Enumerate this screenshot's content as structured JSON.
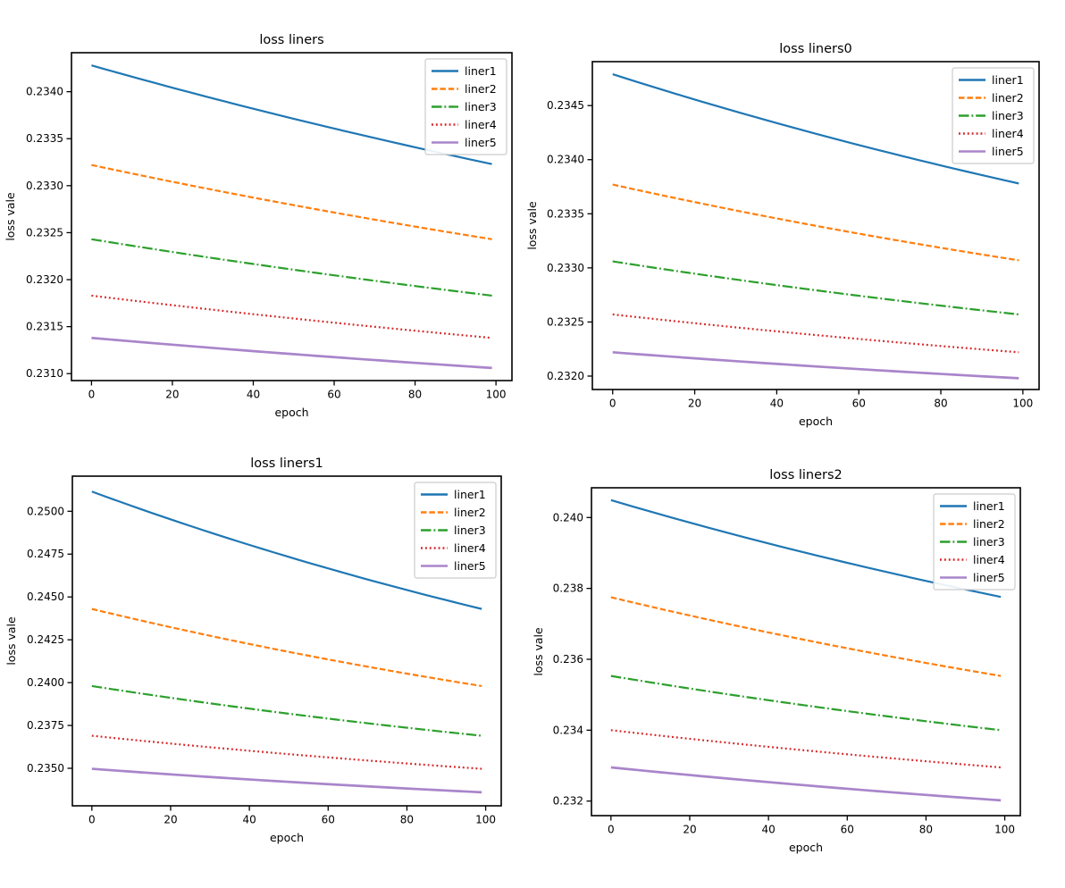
{
  "figure": {
    "background": "#ffffff",
    "layout": "2x2 subplots"
  },
  "chart_data": [
    {
      "type": "line",
      "title": "loss liners",
      "xlabel": "epoch",
      "ylabel": "loss vale",
      "grid": false,
      "legend_position": "upper right",
      "x_range": [
        0,
        99
      ],
      "xlim": [
        -4.95,
        103.95
      ],
      "ylim": [
        0.230926,
        0.234415
      ],
      "xticks": [
        0,
        20,
        40,
        60,
        80,
        100
      ],
      "xtick_labels": [
        "0",
        "20",
        "40",
        "60",
        "80",
        "100"
      ],
      "yticks": [
        0.231,
        0.2315,
        0.232,
        0.2325,
        0.233,
        0.2335,
        0.234
      ],
      "ytick_labels": [
        "0.2310",
        "0.2315",
        "0.2320",
        "0.2325",
        "0.2330",
        "0.2335",
        "0.2340"
      ],
      "curve_decay": 0.75,
      "series": [
        {
          "label": "liner1",
          "color": "#1f77b4",
          "linestyle": "solid",
          "alpha": 1.0,
          "start": 0.23428,
          "end": 0.23323
        },
        {
          "label": "liner2",
          "color": "#ff7f0e",
          "linestyle": "dashed",
          "alpha": 1.0,
          "start": 0.23322,
          "end": 0.23243
        },
        {
          "label": "liner3",
          "color": "#2ca02c",
          "linestyle": "dashdot",
          "alpha": 1.0,
          "start": 0.23243,
          "end": 0.23183
        },
        {
          "label": "liner4",
          "color": "#d62728",
          "linestyle": "dotted",
          "alpha": 1.0,
          "start": 0.23183,
          "end": 0.23138
        },
        {
          "label": "liner5",
          "color": "#9467bd",
          "linestyle": "solid",
          "alpha": 0.8,
          "start": 0.23138,
          "end": 0.23106
        }
      ]
    },
    {
      "type": "line",
      "title": "loss liners0",
      "xlabel": "epoch",
      "ylabel": "loss vale",
      "grid": false,
      "legend_position": "upper right",
      "x_range": [
        0,
        99
      ],
      "xlim": [
        -4.95,
        103.95
      ],
      "ylim": [
        0.231876,
        0.234906
      ],
      "xticks": [
        0,
        20,
        40,
        60,
        80,
        100
      ],
      "xtick_labels": [
        "0",
        "20",
        "40",
        "60",
        "80",
        "100"
      ],
      "yticks": [
        0.232,
        0.2325,
        0.233,
        0.2335,
        0.234,
        0.2345
      ],
      "ytick_labels": [
        "0.2320",
        "0.2325",
        "0.2330",
        "0.2335",
        "0.2340",
        "0.2345"
      ],
      "curve_decay": 0.7,
      "series": [
        {
          "label": "liner1",
          "color": "#1f77b4",
          "linestyle": "solid",
          "alpha": 1.0,
          "start": 0.23479,
          "end": 0.23378
        },
        {
          "label": "liner2",
          "color": "#ff7f0e",
          "linestyle": "dashed",
          "alpha": 1.0,
          "start": 0.23377,
          "end": 0.23307
        },
        {
          "label": "liner3",
          "color": "#2ca02c",
          "linestyle": "dashdot",
          "alpha": 1.0,
          "start": 0.23306,
          "end": 0.23257
        },
        {
          "label": "liner4",
          "color": "#d62728",
          "linestyle": "dotted",
          "alpha": 1.0,
          "start": 0.23257,
          "end": 0.23222
        },
        {
          "label": "liner5",
          "color": "#9467bd",
          "linestyle": "solid",
          "alpha": 0.8,
          "start": 0.23222,
          "end": 0.23198
        }
      ]
    },
    {
      "type": "line",
      "title": "loss liners1",
      "xlabel": "epoch",
      "ylabel": "loss vale",
      "grid": false,
      "legend_position": "upper right",
      "x_range": [
        0,
        99
      ],
      "xlim": [
        -4.95,
        103.95
      ],
      "ylim": [
        0.23281,
        0.252049
      ],
      "xticks": [
        0,
        20,
        40,
        60,
        80,
        100
      ],
      "xtick_labels": [
        "0",
        "20",
        "40",
        "60",
        "80",
        "100"
      ],
      "yticks": [
        0.235,
        0.2375,
        0.24,
        0.2425,
        0.245,
        0.2475,
        0.25
      ],
      "ytick_labels": [
        "0.2350",
        "0.2375",
        "0.2400",
        "0.2425",
        "0.2450",
        "0.2475",
        "0.2500"
      ],
      "curve_decay": 0.66,
      "series": [
        {
          "label": "liner1",
          "color": "#1f77b4",
          "linestyle": "solid",
          "alpha": 1.0,
          "start": 0.25115,
          "end": 0.2443
        },
        {
          "label": "liner2",
          "color": "#ff7f0e",
          "linestyle": "dashed",
          "alpha": 1.0,
          "start": 0.2443,
          "end": 0.2398
        },
        {
          "label": "liner3",
          "color": "#2ca02c",
          "linestyle": "dashdot",
          "alpha": 1.0,
          "start": 0.2398,
          "end": 0.2369
        },
        {
          "label": "liner4",
          "color": "#d62728",
          "linestyle": "dotted",
          "alpha": 1.0,
          "start": 0.2369,
          "end": 0.23497
        },
        {
          "label": "liner5",
          "color": "#9467bd",
          "linestyle": "solid",
          "alpha": 0.8,
          "start": 0.23497,
          "end": 0.2336
        }
      ]
    },
    {
      "type": "line",
      "title": "loss liners2",
      "xlabel": "epoch",
      "ylabel": "loss vale",
      "grid": false,
      "legend_position": "upper right",
      "x_range": [
        0,
        99
      ],
      "xlim": [
        -4.95,
        103.95
      ],
      "ylim": [
        0.231589,
        0.240839
      ],
      "xticks": [
        0,
        20,
        40,
        60,
        80,
        100
      ],
      "xtick_labels": [
        "0",
        "20",
        "40",
        "60",
        "80",
        "100"
      ],
      "yticks": [
        0.232,
        0.234,
        0.236,
        0.238,
        0.24
      ],
      "ytick_labels": [
        "0.232",
        "0.234",
        "0.236",
        "0.238",
        "0.240"
      ],
      "curve_decay": 0.7,
      "series": [
        {
          "label": "liner1",
          "color": "#1f77b4",
          "linestyle": "solid",
          "alpha": 1.0,
          "start": 0.24049,
          "end": 0.23776
        },
        {
          "label": "liner2",
          "color": "#ff7f0e",
          "linestyle": "dashed",
          "alpha": 1.0,
          "start": 0.23775,
          "end": 0.23553
        },
        {
          "label": "liner3",
          "color": "#2ca02c",
          "linestyle": "dashdot",
          "alpha": 1.0,
          "start": 0.23553,
          "end": 0.234
        },
        {
          "label": "liner4",
          "color": "#d62728",
          "linestyle": "dotted",
          "alpha": 1.0,
          "start": 0.234,
          "end": 0.23295
        },
        {
          "label": "liner5",
          "color": "#9467bd",
          "linestyle": "solid",
          "alpha": 0.8,
          "start": 0.23295,
          "end": 0.23202
        }
      ]
    }
  ]
}
